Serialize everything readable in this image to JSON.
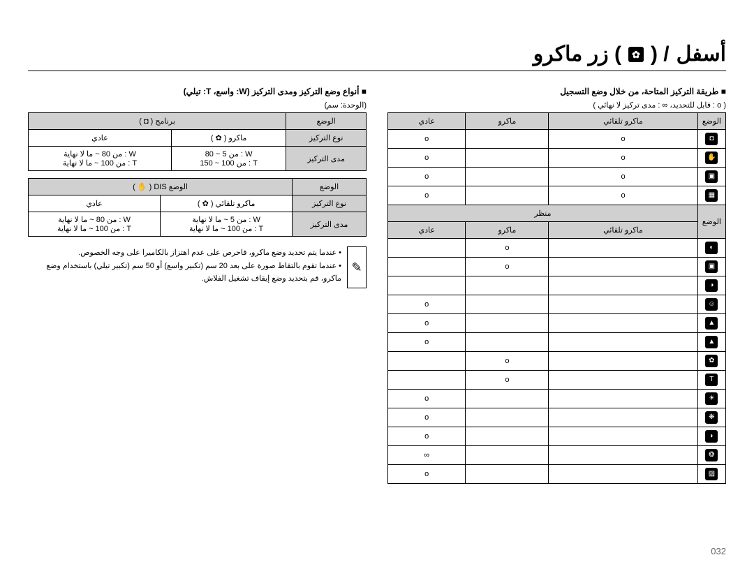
{
  "page_number": "032",
  "title_parts": {
    "right": "زر ماكرو (",
    "slash": " ) /",
    "left": " أسفل"
  },
  "icons": {
    "flower": "✿",
    "note": "✎",
    "camera": "◘",
    "hand": "✋",
    "program": "P",
    "dis": "DIS"
  },
  "right": {
    "heading": "■  أنواع وضع التركيز ومدى التركيز (W: واسع، T: تيلي)",
    "unit": "(الوحدة: سم)",
    "table1": {
      "head_mode": "الوضع",
      "head_program": "برنامج ( ◘ )",
      "row_focus_type": "نوع التركيز",
      "focus_macro": "ماكرو ( ✿ )",
      "focus_normal": "عادي",
      "row_focus_range": "مدى التركيز",
      "range_macro_w": "W : من 5 ~ 80",
      "range_macro_t": "T : من 100 ~ 150",
      "range_normal_w": "W : من 80 ~ ما لا نهاية",
      "range_normal_t": "T : من 100 ~ ما لا نهاية"
    },
    "table2": {
      "head_mode": "الوضع",
      "head_dis": "الوضع DIS ( ✋ )",
      "row_focus_type": "نوع التركيز",
      "focus_auto_macro": "ماكرو تلقائي ( ✿ )",
      "focus_normal": "عادي",
      "row_focus_range": "مدى التركيز",
      "range_auto_w": "W : من 5 ~ ما لا نهاية",
      "range_auto_t": "T : من 100 ~ ما لا نهاية",
      "range_normal_w": "W : من 80 ~ ما لا نهاية",
      "range_normal_t": "T : من 100 ~ ما لا نهاية"
    },
    "notes": [
      "عندما يتم تحديد وضع ماكرو، فاحرص على عدم اهتزاز بالكاميرا على وجه الخصوص.",
      "عندما تقوم بالتقاط صورة على بعد 20 سم (تكبير واسع) أو 50 سم (تكبير تيلي) باستخدام وضع ماكرو، قم بتحديد وضع إيقاف تشغيل الفلاش."
    ]
  },
  "left": {
    "heading": "■  طريقة التركيز المتاحة، من خلال وضع التسجيل",
    "legend": "( o : قابل للتحديد،    ∞ : مدى تركيز لا نهائي )",
    "columns": {
      "mode": "الوضع",
      "auto_macro": "ماكرو تلقائي",
      "macro": "ماكرو",
      "normal": "عادي"
    },
    "scene_header": "منظر",
    "rows_top": [
      {
        "icon": "◘",
        "auto": "o",
        "macro": "",
        "normal": "o"
      },
      {
        "icon": "✋",
        "auto": "o",
        "macro": "",
        "normal": "o"
      },
      {
        "icon": "▣",
        "auto": "o",
        "macro": "",
        "normal": "o"
      },
      {
        "icon": "▦",
        "auto": "o",
        "macro": "",
        "normal": "o"
      }
    ],
    "rows_scene": [
      {
        "icon": "◐",
        "auto": "",
        "macro": "o",
        "normal": ""
      },
      {
        "icon": "▣",
        "auto": "",
        "macro": "o",
        "normal": ""
      },
      {
        "icon": "◑",
        "auto": "",
        "macro": "",
        "normal": ""
      },
      {
        "icon": "☺",
        "auto": "",
        "macro": "",
        "normal": "o"
      },
      {
        "icon": "▲",
        "auto": "",
        "macro": "",
        "normal": "o"
      },
      {
        "icon": "▲",
        "auto": "",
        "macro": "",
        "normal": "o"
      },
      {
        "icon": "✿",
        "auto": "",
        "macro": "o",
        "normal": ""
      },
      {
        "icon": "T",
        "auto": "",
        "macro": "o",
        "normal": ""
      },
      {
        "icon": "☀",
        "auto": "",
        "macro": "",
        "normal": "o"
      },
      {
        "icon": "❋",
        "auto": "",
        "macro": "",
        "normal": "o"
      },
      {
        "icon": "◗",
        "auto": "",
        "macro": "",
        "normal": "o"
      },
      {
        "icon": "❂",
        "auto": "",
        "macro": "",
        "normal": "∞"
      },
      {
        "icon": "▨",
        "auto": "",
        "macro": "",
        "normal": "o"
      }
    ]
  },
  "colors": {
    "header_bg": "#d0d0d0",
    "border": "#000000",
    "text": "#000000",
    "pagenum": "#666666"
  }
}
